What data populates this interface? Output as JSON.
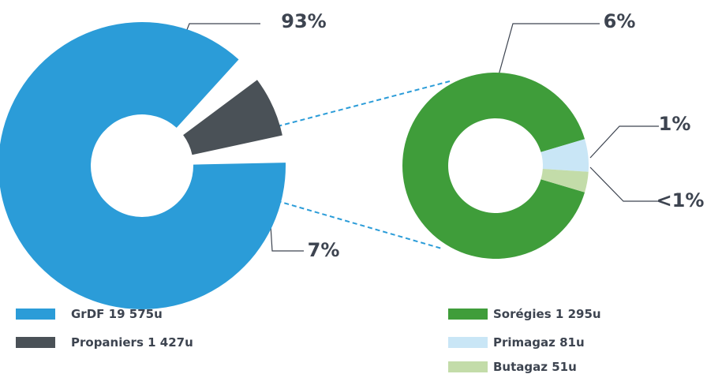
{
  "chart_data": [
    {
      "type": "pie",
      "categories": [
        "GrDF",
        "Propaniers"
      ],
      "values": [
        19575,
        1427
      ],
      "value_labels": [
        "19 575u",
        "1 427u"
      ],
      "shares": [
        93,
        7
      ],
      "share_labels": [
        "93%",
        "7%"
      ],
      "colors": [
        "#2b9cd8",
        "#4a5157"
      ]
    },
    {
      "type": "pie",
      "categories": [
        "Sorégies",
        "Primagaz",
        "Butagaz"
      ],
      "values": [
        1295,
        81,
        51
      ],
      "value_labels": [
        "1 295u",
        "81u",
        "51u"
      ],
      "shares": [
        6,
        1,
        0.2
      ],
      "share_labels": [
        "6%",
        "1%",
        "<1%"
      ],
      "colors": [
        "#3f9d3a",
        "#c9e6f6",
        "#c3dca9"
      ]
    }
  ]
}
